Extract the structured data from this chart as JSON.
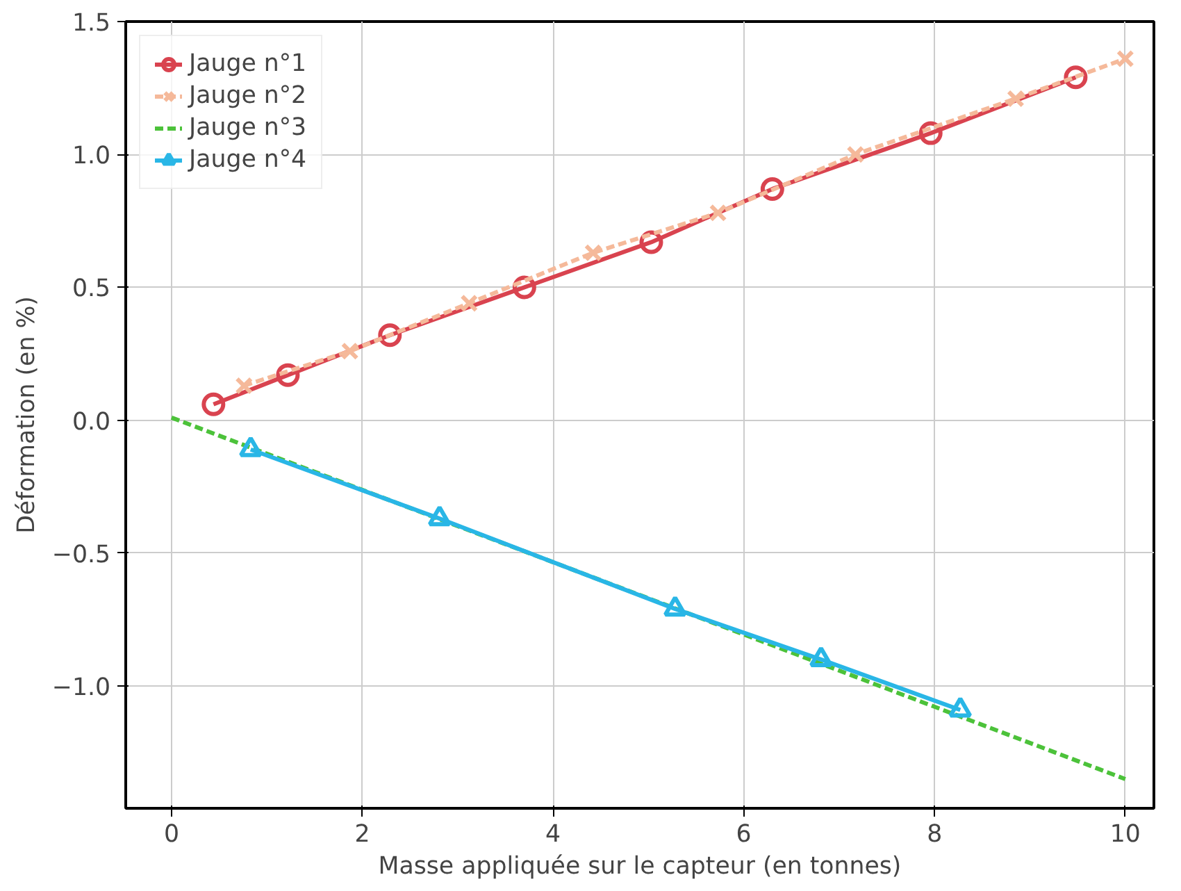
{
  "chart_data": {
    "type": "line",
    "xlabel": "Masse appliquée sur le capteur (en tonnes)",
    "ylabel": "Déformation (en %)",
    "xlim": [
      -0.48,
      10.3
    ],
    "ylim": [
      -1.46,
      1.5
    ],
    "xticks": [
      0,
      2,
      4,
      6,
      8,
      10
    ],
    "yticks": [
      {
        "value": -1.0,
        "label": "−1.0"
      },
      {
        "value": -0.5,
        "label": "−0.5"
      },
      {
        "value": 0,
        "label": "0.0"
      },
      {
        "value": 0.5,
        "label": "0.5"
      },
      {
        "value": 1.0,
        "label": "1.0"
      },
      {
        "value": 1.5,
        "label": "1.5"
      }
    ],
    "grid": true,
    "legend": "top left",
    "series": [
      {
        "name": "Jauge n°1",
        "color": "#d9434f",
        "marker": "circle",
        "line_style": "solid",
        "x": [
          0.44,
          1.22,
          2.29,
          3.7,
          5.03,
          6.3,
          7.96,
          9.48
        ],
        "values": [
          0.06,
          0.17,
          0.32,
          0.5,
          0.67,
          0.87,
          1.08,
          1.29
        ]
      },
      {
        "name": "Jauge n°2",
        "color": "#f5b99a",
        "marker": "cross",
        "line_style": "dashed",
        "x": [
          0.76,
          1.87,
          3.12,
          4.42,
          5.73,
          7.17,
          8.85,
          10.0
        ],
        "values": [
          0.13,
          0.26,
          0.44,
          0.63,
          0.78,
          1.0,
          1.21,
          1.36
        ]
      },
      {
        "name": "Jauge n°3",
        "color": "#4cc23a",
        "marker": "none",
        "line_style": "dashed",
        "x": [
          0,
          10.0
        ],
        "values": [
          0.01,
          -1.35
        ]
      },
      {
        "name": "Jauge n°4",
        "color": "#29b6e6",
        "marker": "triangle",
        "line_style": "solid",
        "x": [
          0.83,
          2.81,
          5.28,
          6.81,
          8.27
        ],
        "values": [
          -0.11,
          -0.37,
          -0.71,
          -0.9,
          -1.09
        ]
      }
    ]
  }
}
